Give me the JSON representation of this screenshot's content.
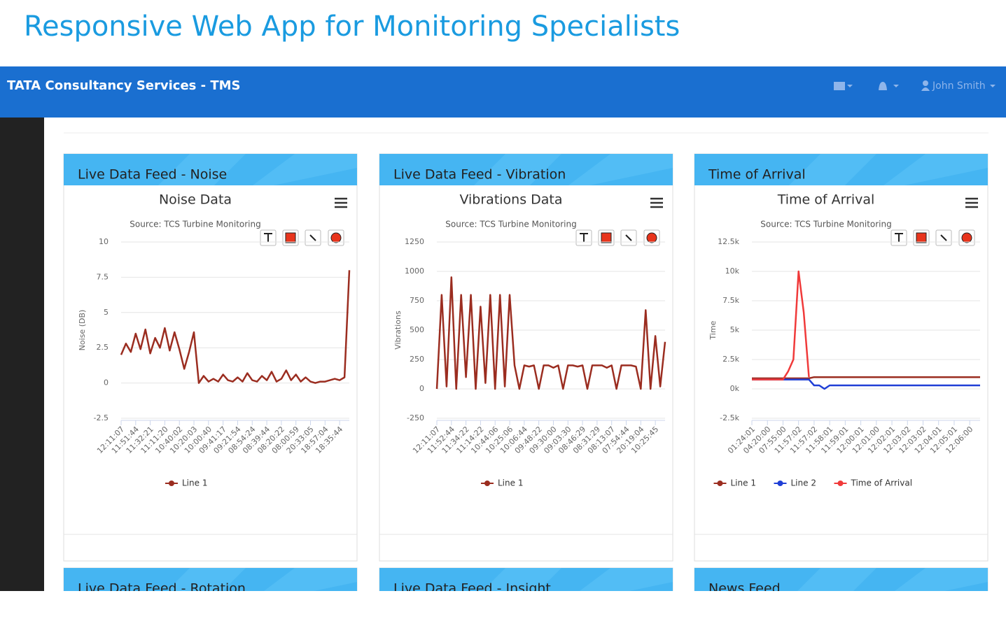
{
  "page_title": "Responsive Web App for Monitoring Specialists",
  "navbar": {
    "brand": "TATA Consultancy Services - TMS",
    "user": "John Smith"
  },
  "more_panels": [
    "Live Data Feed - Rotation",
    "Live Data Feed - Insight",
    "News Feed"
  ],
  "chart_data": [
    {
      "type": "line",
      "panel_heading": "Live Data Feed - Noise",
      "title": "Noise Data",
      "subtitle": "Source: TCS Turbine Monitoring",
      "y_label": "Noise (DB)",
      "categories": [
        "12:11:07",
        null,
        null,
        "11:51:44",
        null,
        null,
        "11:32:21",
        null,
        null,
        "11:11:20",
        null,
        null,
        "10:40:02",
        null,
        null,
        "10:20:03",
        null,
        null,
        "10:00:40",
        null,
        null,
        "09:41:17",
        null,
        null,
        "09:21:54",
        null,
        null,
        "08:54:24",
        null,
        null,
        "08:39:44",
        null,
        null,
        "08:20:22",
        null,
        null,
        "08:00:59",
        null,
        null,
        "20:33:05",
        null,
        null,
        "18:57:04",
        null,
        null,
        "18:35:44",
        null,
        null
      ],
      "series": [
        {
          "name": "Line 1",
          "color": "#9b2d20",
          "values": [
            2,
            2.8,
            2.2,
            3.5,
            2.4,
            3.8,
            2.1,
            3.2,
            2.5,
            3.9,
            2.3,
            3.6,
            2.4,
            1,
            2.2,
            3.6,
            0,
            0.5,
            0.1,
            0.3,
            0.1,
            0.6,
            0.2,
            0.1,
            0.4,
            0.1,
            0.7,
            0.2,
            0.1,
            0.5,
            0.2,
            0.8,
            0.1,
            0.3,
            0.9,
            0.2,
            0.6,
            0.1,
            0.4,
            0.1,
            0,
            0.1,
            0.1,
            0.2,
            0.3,
            0.2,
            0.4,
            8
          ]
        }
      ],
      "ylim": [
        -2.5,
        10
      ],
      "yticks": [
        -2.5,
        0,
        2.5,
        5,
        7.5,
        10
      ],
      "grid": true
    },
    {
      "type": "line",
      "panel_heading": "Live Data Feed - Vibration",
      "title": "Vibrations Data",
      "subtitle": "Source: TCS Turbine Monitoring",
      "y_label": "Vibrations",
      "categories": [
        "12:11:07",
        null,
        null,
        "11:52:44",
        null,
        null,
        "11:34:22",
        null,
        null,
        "11:14:22",
        null,
        null,
        "10:44:06",
        null,
        null,
        "10:25:06",
        null,
        null,
        "10:06:44",
        null,
        null,
        "09:48:22",
        null,
        null,
        "09:30:00",
        null,
        null,
        "09:03:30",
        null,
        null,
        "08:46:29",
        null,
        null,
        "08:31:29",
        null,
        null,
        "08:13:07",
        null,
        null,
        "07:54:44",
        null,
        null,
        "20:19:04",
        null,
        null,
        "10:25:45",
        null,
        null
      ],
      "series": [
        {
          "name": "Line 1",
          "color": "#9b2d20",
          "values": [
            0,
            800,
            20,
            950,
            0,
            800,
            100,
            800,
            0,
            700,
            50,
            800,
            0,
            800,
            20,
            800,
            200,
            0,
            200,
            190,
            200,
            0,
            200,
            200,
            180,
            200,
            0,
            200,
            200,
            190,
            200,
            0,
            200,
            200,
            200,
            180,
            200,
            0,
            200,
            200,
            200,
            190,
            0,
            670,
            0,
            450,
            20,
            400
          ]
        }
      ],
      "ylim": [
        -250,
        1250
      ],
      "yticks": [
        -250,
        0,
        250,
        500,
        750,
        1000,
        1250
      ],
      "grid": true
    },
    {
      "type": "line",
      "panel_heading": "Time of Arrival",
      "title": "Time of Arrival",
      "subtitle": "Source: TCS Turbine Monitoring",
      "y_label": "Time",
      "categories": [
        "01:24:01",
        null,
        null,
        "04:20:00",
        null,
        null,
        "07:55:00",
        null,
        null,
        "11:57:02",
        null,
        null,
        "11:57:02",
        null,
        null,
        "11:58:01",
        null,
        null,
        "11:59:01",
        null,
        null,
        "12:00:01",
        null,
        null,
        "12:01:00",
        null,
        null,
        "12:02:01",
        null,
        null,
        "12:03:02",
        null,
        null,
        "12:03:02",
        null,
        null,
        "12:04:01",
        null,
        null,
        "12:05:01",
        null,
        null,
        "12:06:00",
        null,
        null
      ],
      "series": [
        {
          "name": "Line 1",
          "color": "#9b2d20",
          "values": [
            900,
            900,
            900,
            900,
            900,
            900,
            900,
            900,
            900,
            900,
            900,
            900,
            1000,
            1000,
            1000,
            1000,
            1000,
            1000,
            1000,
            1000,
            1000,
            1000,
            1000,
            1000,
            1000,
            1000,
            1000,
            1000,
            1000,
            1000,
            1000,
            1000,
            1000,
            1000,
            1000,
            1000,
            1000,
            1000,
            1000,
            1000,
            1000,
            1000,
            1000,
            1000,
            1000
          ]
        },
        {
          "name": "Line 2",
          "color": "#1f3fd6",
          "values": [
            800,
            800,
            800,
            800,
            800,
            800,
            800,
            800,
            800,
            800,
            800,
            800,
            300,
            300,
            0,
            300,
            300,
            300,
            300,
            300,
            300,
            300,
            300,
            300,
            300,
            300,
            300,
            300,
            300,
            300,
            300,
            300,
            300,
            300,
            300,
            300,
            300,
            300,
            300,
            300,
            300,
            300,
            300,
            300,
            300
          ]
        },
        {
          "name": "Time of Arrival",
          "color": "#f03a3a",
          "values": [
            800,
            800,
            800,
            800,
            800,
            800,
            800,
            1500,
            2500,
            10000,
            6500,
            1000,
            null,
            null,
            null,
            null,
            null,
            null,
            null,
            null,
            null,
            null,
            null,
            null,
            null,
            null,
            null,
            null,
            null,
            null,
            null,
            null,
            null,
            null,
            null,
            null,
            null,
            null,
            null,
            null,
            null,
            null,
            null,
            null,
            null
          ]
        }
      ],
      "ylim": [
        -2500,
        12500
      ],
      "yticks": [
        {
          "value": -2500,
          "label": "-2.5k"
        },
        {
          "value": 0,
          "label": "0k"
        },
        {
          "value": 2500,
          "label": "2.5k"
        },
        {
          "value": 5000,
          "label": "5k"
        },
        {
          "value": 7500,
          "label": "7.5k"
        },
        {
          "value": 10000,
          "label": "10k"
        },
        {
          "value": 12500,
          "label": "12.5k"
        }
      ],
      "grid": true
    }
  ]
}
